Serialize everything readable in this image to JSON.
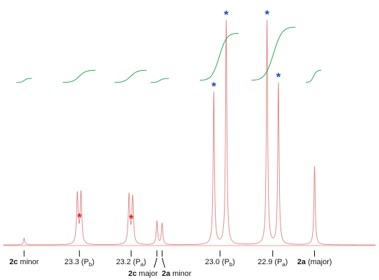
{
  "chart_data": {
    "type": "line",
    "x_axis": {
      "direction": "decreasing-left-to-right",
      "unit": "ppm",
      "range": [
        22.73,
        23.45
      ]
    },
    "colors": {
      "spectrum": "#e07f7f",
      "integral": "#1fa64f",
      "axis": "#000000",
      "marker_red": "#e02020",
      "marker_blue": "#1f3fd8"
    },
    "peaks": [
      {
        "ppm": 23.41,
        "height": 0.03,
        "width": 0.0015
      },
      {
        "ppm": 23.307,
        "height": 0.225,
        "width": 0.0018
      },
      {
        "ppm": 23.3,
        "height": 0.23,
        "width": 0.0018
      },
      {
        "ppm": 23.207,
        "height": 0.22,
        "width": 0.0018
      },
      {
        "ppm": 23.2,
        "height": 0.21,
        "width": 0.0018
      },
      {
        "ppm": 23.153,
        "height": 0.105,
        "width": 0.0016
      },
      {
        "ppm": 23.143,
        "height": 0.095,
        "width": 0.0016
      },
      {
        "ppm": 23.043,
        "height": 0.68,
        "width": 0.0015
      },
      {
        "ppm": 23.019,
        "height": 1.0,
        "width": 0.0015
      },
      {
        "ppm": 22.94,
        "height": 1.0,
        "width": 0.0015
      },
      {
        "ppm": 22.918,
        "height": 0.72,
        "width": 0.0015
      },
      {
        "ppm": 22.848,
        "height": 0.35,
        "width": 0.0015
      }
    ],
    "integrals": [
      {
        "start": 23.425,
        "end": 23.395,
        "rise": 0.02
      },
      {
        "start": 23.335,
        "end": 23.272,
        "rise": 0.06
      },
      {
        "start": 23.235,
        "end": 23.173,
        "rise": 0.06
      },
      {
        "start": 23.165,
        "end": 23.13,
        "rise": 0.02
      },
      {
        "start": 23.07,
        "end": 22.995,
        "rise": 0.25
      },
      {
        "start": 22.97,
        "end": 22.885,
        "rise": 0.28
      },
      {
        "start": 22.865,
        "end": 22.835,
        "rise": 0.06
      }
    ],
    "markers": [
      {
        "ppm": 23.303,
        "color": "red",
        "text": "*"
      },
      {
        "ppm": 23.203,
        "color": "red",
        "text": "*"
      },
      {
        "ppm": 23.043,
        "color": "blue",
        "text": "*"
      },
      {
        "ppm": 23.019,
        "color": "blue",
        "text": "*"
      },
      {
        "ppm": 22.94,
        "color": "blue",
        "text": "*"
      },
      {
        "ppm": 22.918,
        "color": "blue",
        "text": "*"
      }
    ],
    "ticks": [
      23.41,
      23.303,
      23.203,
      23.153,
      23.143,
      23.031,
      22.929,
      22.848
    ],
    "labels": [
      {
        "id": "2c-minor",
        "bold": "2c",
        "text": " minor",
        "ppm": 23.41,
        "row": 1
      },
      {
        "id": "23-3",
        "main": "23.3 (P",
        "sub": "b",
        "tail": ")",
        "ppm": 23.303,
        "row": 1
      },
      {
        "id": "23-2",
        "main": "23.2 (P",
        "sub": "a",
        "tail": ")",
        "ppm": 23.203,
        "row": 1
      },
      {
        "id": "23-0",
        "main": "23.0 (P",
        "sub": "b",
        "tail": ")",
        "ppm": 23.031,
        "row": 1
      },
      {
        "id": "22-9",
        "main": "22.9 (P",
        "sub": "a",
        "tail": ")",
        "ppm": 22.929,
        "row": 1
      },
      {
        "id": "2a-major",
        "bold": "2a",
        "text": " (major)",
        "ppm": 22.848,
        "row": 1
      },
      {
        "id": "2c-major",
        "bold": "2c",
        "text": " major",
        "ppm": 23.18,
        "row": 2
      },
      {
        "id": "2a-minor",
        "bold": "2a",
        "text": " minor",
        "ppm": 23.115,
        "row": 2
      }
    ]
  }
}
